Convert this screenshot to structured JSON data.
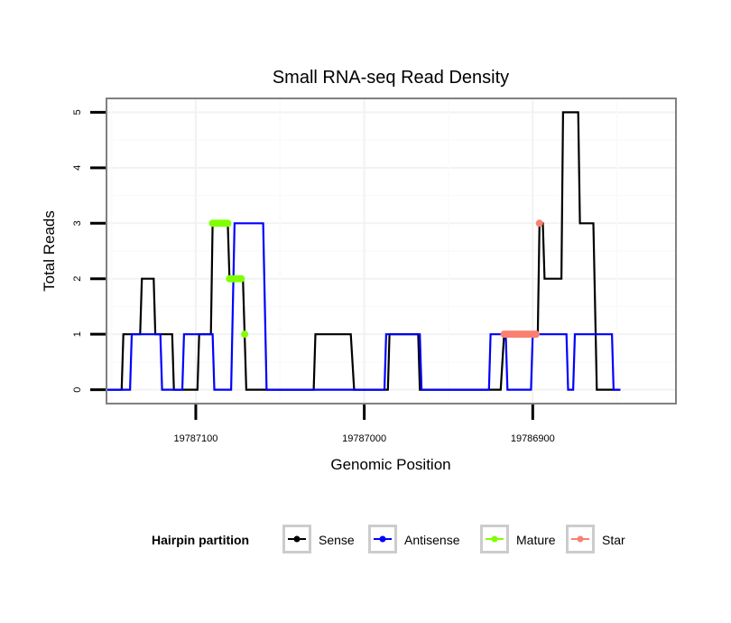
{
  "chart_data": {
    "type": "line",
    "title": "Small RNA-seq Read Density",
    "xlabel": "Genomic Position",
    "ylabel": "Total Reads",
    "x_reversed": true,
    "xlim": [
      19787153,
      19786815
    ],
    "ylim": [
      -0.25,
      5.25
    ],
    "x_ticks": [
      19787100,
      19787000,
      19786900
    ],
    "x_tick_labels": [
      "19787100",
      "19787000",
      "19786900"
    ],
    "y_ticks": [
      0,
      1,
      2,
      3,
      4,
      5
    ],
    "y_tick_labels": [
      "0",
      "1",
      "2",
      "3",
      "4",
      "5"
    ],
    "grid": true,
    "legend": {
      "title": "Hairpin partition",
      "position": "bottom",
      "entries": [
        {
          "name": "Sense",
          "color": "#000000"
        },
        {
          "name": "Antisense",
          "color": "#0000ff"
        },
        {
          "name": "Mature",
          "color": "#7fff00"
        },
        {
          "name": "Star",
          "color": "#fa8072"
        }
      ]
    },
    "series": [
      {
        "name": "Sense",
        "color": "#000000",
        "style": "line",
        "points": [
          [
            19787154,
            0
          ],
          [
            19787144,
            0
          ],
          [
            19787143,
            1
          ],
          [
            19787133,
            1
          ],
          [
            19787132,
            2
          ],
          [
            19787125,
            2
          ],
          [
            19787124,
            1
          ],
          [
            19787114,
            1
          ],
          [
            19787113,
            0
          ],
          [
            19787099,
            0
          ],
          [
            19787098,
            1
          ],
          [
            19787091,
            1
          ],
          [
            19787090,
            3
          ],
          [
            19787081,
            3
          ],
          [
            19787080,
            2
          ],
          [
            19787072,
            2
          ],
          [
            19787070,
            0
          ],
          [
            19787030,
            0
          ],
          [
            19787029,
            1
          ],
          [
            19787008,
            1
          ],
          [
            19787006,
            0
          ],
          [
            19786986,
            0
          ],
          [
            19786985,
            1
          ],
          [
            19786968,
            1
          ],
          [
            19786967,
            0
          ],
          [
            19786919,
            0
          ],
          [
            19786917,
            1
          ],
          [
            19786897,
            1
          ],
          [
            19786896,
            3
          ],
          [
            19786894,
            3
          ],
          [
            19786893,
            2
          ],
          [
            19786883,
            2
          ],
          [
            19786882,
            5
          ],
          [
            19786873,
            5
          ],
          [
            19786872,
            3
          ],
          [
            19786864,
            3
          ],
          [
            19786862,
            0
          ],
          [
            19786848,
            0
          ]
        ]
      },
      {
        "name": "Antisense",
        "color": "#0000ff",
        "style": "line",
        "points": [
          [
            19787154,
            0
          ],
          [
            19787139,
            0
          ],
          [
            19787138,
            1
          ],
          [
            19787121,
            1
          ],
          [
            19787120,
            0
          ],
          [
            19787108,
            0
          ],
          [
            19787107,
            1
          ],
          [
            19787090,
            1
          ],
          [
            19787089,
            0
          ],
          [
            19787079,
            0
          ],
          [
            19787077,
            3
          ],
          [
            19787060,
            3
          ],
          [
            19787058,
            0
          ],
          [
            19786988,
            0
          ],
          [
            19786987,
            1
          ],
          [
            19786967,
            1
          ],
          [
            19786966,
            0
          ],
          [
            19786926,
            0
          ],
          [
            19786925,
            1
          ],
          [
            19786916,
            1
          ],
          [
            19786915,
            0
          ],
          [
            19786901,
            0
          ],
          [
            19786900,
            1
          ],
          [
            19786880,
            1
          ],
          [
            19786879,
            0
          ],
          [
            19786876,
            0
          ],
          [
            19786875,
            1
          ],
          [
            19786853,
            1
          ],
          [
            19786852,
            0
          ],
          [
            19786848,
            0
          ]
        ]
      },
      {
        "name": "Mature",
        "color": "#7fff00",
        "style": "points",
        "points": [
          [
            19787090,
            3
          ],
          [
            19787089,
            3
          ],
          [
            19787088,
            3
          ],
          [
            19787087,
            3
          ],
          [
            19787086,
            3
          ],
          [
            19787085,
            3
          ],
          [
            19787084,
            3
          ],
          [
            19787083,
            3
          ],
          [
            19787082,
            3
          ],
          [
            19787081,
            3
          ],
          [
            19787080,
            2
          ],
          [
            19787079,
            2
          ],
          [
            19787078,
            2
          ],
          [
            19787077,
            2
          ],
          [
            19787076,
            2
          ],
          [
            19787075,
            2
          ],
          [
            19787074,
            2
          ],
          [
            19787073,
            2
          ],
          [
            19787071,
            1
          ]
        ]
      },
      {
        "name": "Star",
        "color": "#fa8072",
        "style": "points",
        "points": [
          [
            19786917,
            1
          ],
          [
            19786916,
            1
          ],
          [
            19786915,
            1
          ],
          [
            19786914,
            1
          ],
          [
            19786913,
            1
          ],
          [
            19786912,
            1
          ],
          [
            19786911,
            1
          ],
          [
            19786910,
            1
          ],
          [
            19786909,
            1
          ],
          [
            19786908,
            1
          ],
          [
            19786907,
            1
          ],
          [
            19786906,
            1
          ],
          [
            19786905,
            1
          ],
          [
            19786904,
            1
          ],
          [
            19786903,
            1
          ],
          [
            19786902,
            1
          ],
          [
            19786901,
            1
          ],
          [
            19786900,
            1
          ],
          [
            19786899,
            1
          ],
          [
            19786898,
            1
          ],
          [
            19786896,
            3
          ]
        ]
      }
    ]
  }
}
